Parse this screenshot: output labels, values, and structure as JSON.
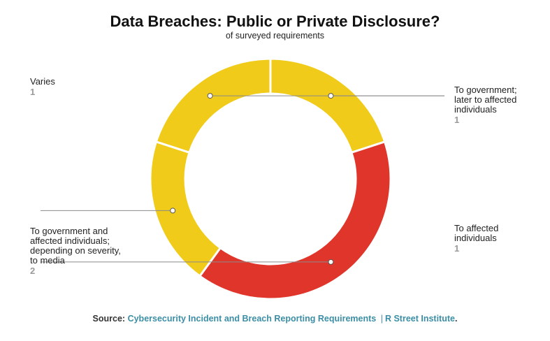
{
  "chart_data": {
    "type": "pie",
    "title": "Data Breaches: Public or Private Disclosure?",
    "subtitle": "of surveyed requirements",
    "slices": [
      {
        "label": "To government; later to affected individuals",
        "value": 1,
        "color": "#f0cb19"
      },
      {
        "label": "To affected individuals",
        "value": 1,
        "color": "#f0cb19"
      },
      {
        "label": "To government and affected individuals; depending on severity, to media",
        "value": 2,
        "color": "#e0352b"
      },
      {
        "label": "Varies",
        "value": 1,
        "color": "#f0cb19"
      }
    ]
  },
  "labels": {
    "varies": {
      "text": "Varies",
      "value": "1"
    },
    "gov_later": {
      "line1": "To government;",
      "line2": "later to affected",
      "line3": "individuals",
      "value": "1"
    },
    "affected": {
      "line1": "To affected",
      "line2": "individuals",
      "value": "1"
    },
    "gov_media": {
      "line1": "To government and",
      "line2": "affected individuals;",
      "line3": "depending on severity,",
      "line4": "to media",
      "value": "2"
    }
  },
  "source": {
    "prefix": "Source:",
    "link1": "Cybersecurity Incident and Breach Reporting Requirements",
    "separator": "|",
    "link2": "R Street Institute",
    "suffix": "."
  }
}
